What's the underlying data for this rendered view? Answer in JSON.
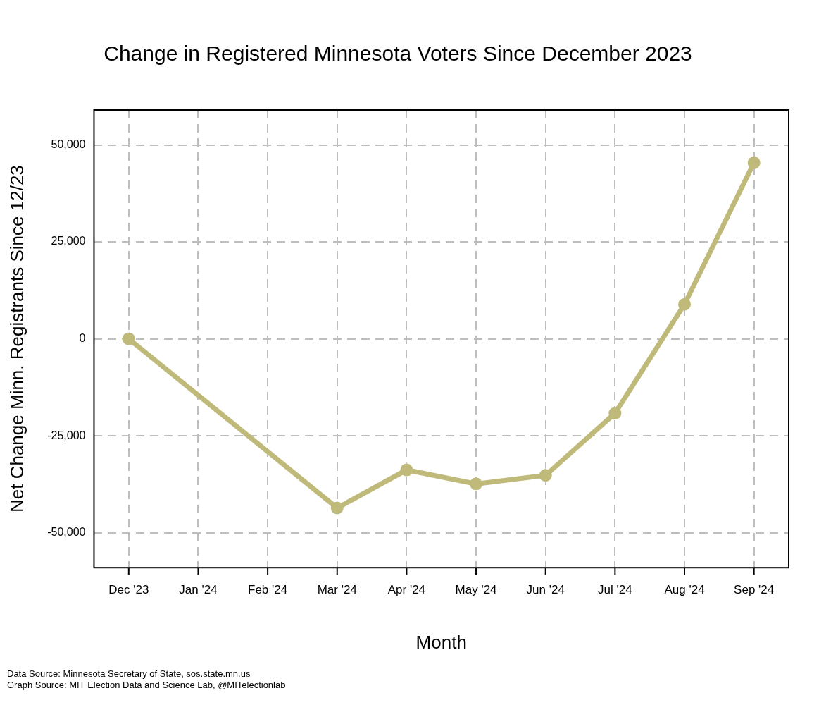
{
  "chart_data": {
    "type": "line",
    "title": "Change in Registered Minnesota Voters Since December 2023",
    "x_label": "Month",
    "y_label": "Net Change Minn. Registrants Since 12/23",
    "notes": [
      "Data Source: Minnesota Secretary of State, sos.state.mn.us",
      "Graph Source: MIT Election Data and Science Lab, @MITelectionlab"
    ],
    "categories": [
      "Dec '23",
      "Jan '24",
      "Feb '24",
      "Mar '24",
      "Apr '24",
      "May '24",
      "Jun '24",
      "Jul '24",
      "Aug '24",
      "Sep '24"
    ],
    "values": [
      0,
      null,
      null,
      -43600,
      -33800,
      -37400,
      -35200,
      -19200,
      8900,
      45400
    ],
    "color": "#bfba7a",
    "marker": "circle",
    "line_style": "solid",
    "ylim": [
      -59000,
      59000
    ],
    "yticks": [
      {
        "value": -50000,
        "label": "-50,000"
      },
      {
        "value": -25000,
        "label": "-25,000"
      },
      0,
      {
        "value": 25000,
        "label": "25,000"
      },
      {
        "value": 50000,
        "label": "50,000"
      }
    ],
    "grid": true
  }
}
